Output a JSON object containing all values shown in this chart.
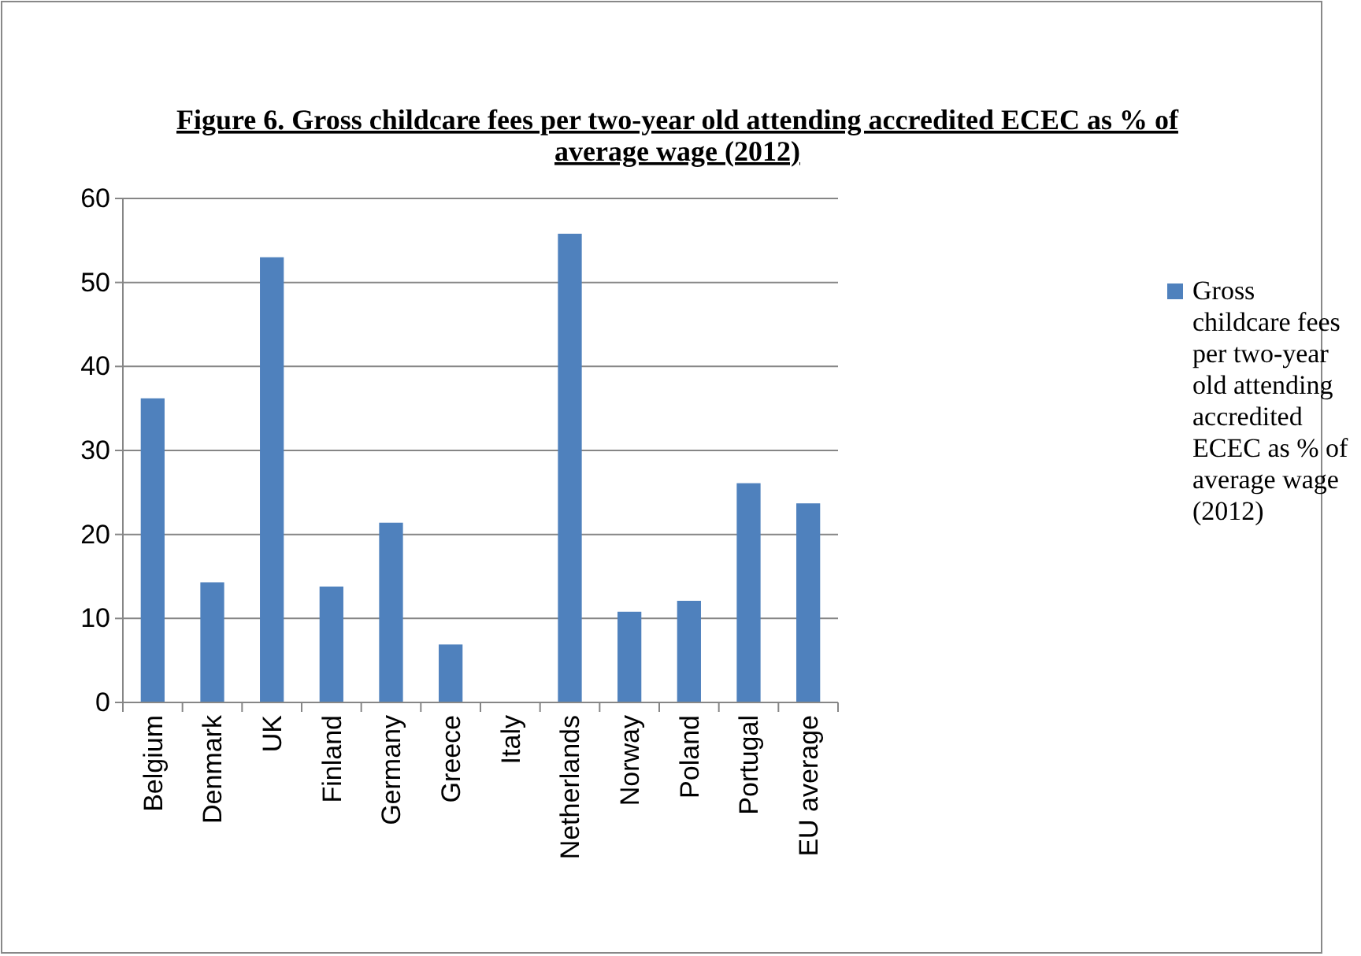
{
  "chart_data": {
    "type": "bar",
    "title": "Figure  6. Gross childcare fees per two-year old attending accredited ECEC as % of average wage (2012)",
    "categories": [
      "Belgium",
      "Denmark",
      "UK",
      "Finland",
      "Germany",
      "Greece",
      "Italy",
      "Netherlands",
      "Norway",
      "Poland",
      "Portugal",
      "EU average"
    ],
    "series": [
      {
        "name": "Gross childcare fees per two-year old attending accredited ECEC as % of average wage (2012)",
        "color": "#4f81bd",
        "values": [
          36.2,
          14.3,
          53,
          13.8,
          21.4,
          6.9,
          null,
          55.8,
          10.8,
          12.1,
          26.1,
          23.7
        ]
      }
    ],
    "ylim": [
      0,
      60
    ],
    "yticks": [
      0,
      10,
      20,
      30,
      40,
      50,
      60
    ],
    "grid": "y",
    "legend": "right"
  }
}
